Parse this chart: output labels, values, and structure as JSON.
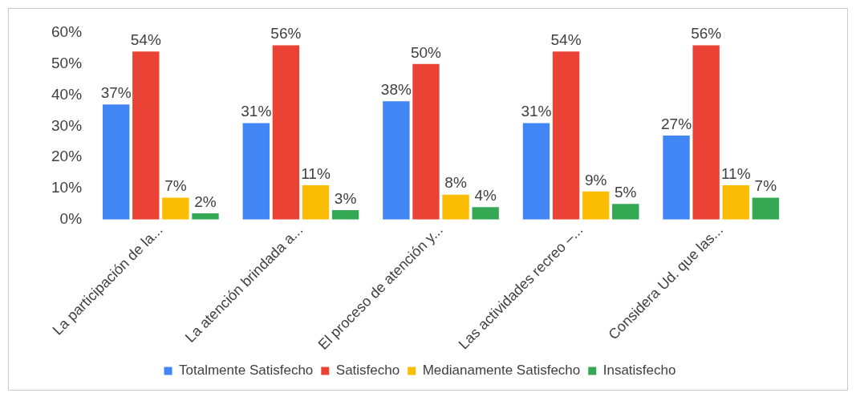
{
  "chart_data": {
    "type": "bar",
    "categories": [
      "La participación de la...",
      "La atención brindada a...",
      "El proceso de atención y...",
      "Las actividades recreo –...",
      "Considera Ud. que las..."
    ],
    "series": [
      {
        "name": "Totalmente Satisfecho",
        "color": "#4285f4",
        "values": [
          37,
          31,
          38,
          31,
          27
        ],
        "value_labels": [
          "37%",
          "31%",
          "38%",
          "31%",
          "27%"
        ]
      },
      {
        "name": "Satisfecho",
        "color": "#ea4335",
        "values": [
          54,
          56,
          50,
          54,
          56
        ],
        "value_labels": [
          "54%",
          "56%",
          "50%",
          "54%",
          "56%"
        ]
      },
      {
        "name": "Medianamente Satisfecho",
        "color": "#fbbc04",
        "values": [
          7,
          11,
          8,
          9,
          11
        ],
        "value_labels": [
          "7%",
          "11%",
          "8%",
          "9%",
          "11%"
        ]
      },
      {
        "name": "Insatisfecho",
        "color": "#34a853",
        "values": [
          2,
          3,
          4,
          5,
          7
        ],
        "value_labels": [
          "2%",
          "3%",
          "4%",
          "5%",
          "7%"
        ]
      }
    ],
    "ylim": [
      0,
      60
    ],
    "yticks": [
      {
        "value": 0,
        "label": "0%"
      },
      {
        "value": 10,
        "label": "10%"
      },
      {
        "value": 20,
        "label": "20%"
      },
      {
        "value": 30,
        "label": "30%"
      },
      {
        "value": 40,
        "label": "40%"
      },
      {
        "value": 50,
        "label": "50%"
      },
      {
        "value": 60,
        "label": "60%"
      }
    ],
    "grid": false,
    "legend": "bottom"
  }
}
